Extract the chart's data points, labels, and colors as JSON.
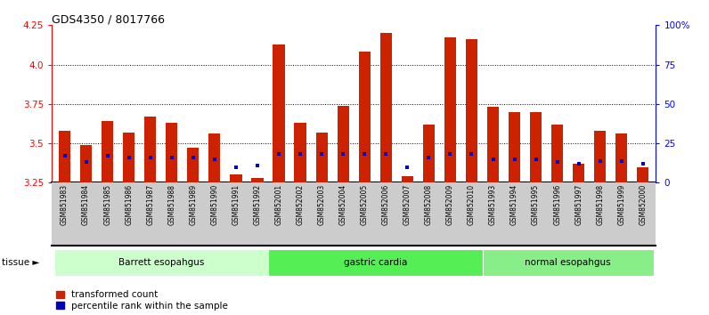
{
  "title": "GDS4350 / 8017766",
  "samples": [
    "GSM851983",
    "GSM851984",
    "GSM851985",
    "GSM851986",
    "GSM851987",
    "GSM851988",
    "GSM851989",
    "GSM851990",
    "GSM851991",
    "GSM851992",
    "GSM852001",
    "GSM852002",
    "GSM852003",
    "GSM852004",
    "GSM852005",
    "GSM852006",
    "GSM852007",
    "GSM852008",
    "GSM852009",
    "GSM852010",
    "GSM851993",
    "GSM851994",
    "GSM851995",
    "GSM851996",
    "GSM851997",
    "GSM851998",
    "GSM851999",
    "GSM852000"
  ],
  "red_values": [
    3.58,
    3.49,
    3.64,
    3.57,
    3.67,
    3.63,
    3.47,
    3.56,
    3.3,
    3.28,
    4.13,
    3.63,
    3.57,
    3.74,
    4.08,
    4.2,
    3.29,
    3.62,
    4.17,
    4.16,
    3.73,
    3.7,
    3.7,
    3.62,
    3.37,
    3.58,
    3.56,
    3.35
  ],
  "blue_values": [
    3.42,
    3.38,
    3.42,
    3.41,
    3.41,
    3.41,
    3.41,
    3.4,
    3.35,
    3.36,
    3.43,
    3.43,
    3.43,
    3.43,
    3.43,
    3.43,
    3.35,
    3.41,
    3.43,
    3.43,
    3.4,
    3.4,
    3.4,
    3.38,
    3.37,
    3.39,
    3.39,
    3.37
  ],
  "groups": [
    {
      "label": "Barrett esopahgus",
      "start": 0,
      "end": 10,
      "color": "#ccffcc"
    },
    {
      "label": "gastric cardia",
      "start": 10,
      "end": 20,
      "color": "#55ee55"
    },
    {
      "label": "normal esopahgus",
      "start": 20,
      "end": 28,
      "color": "#88ee88"
    }
  ],
  "ylim_left": [
    3.25,
    4.25
  ],
  "ylim_right": [
    0,
    100
  ],
  "yticks_left": [
    3.25,
    3.5,
    3.75,
    4.0,
    4.25
  ],
  "yticks_right": [
    0,
    25,
    50,
    75,
    100
  ],
  "ytick_labels_right": [
    "0",
    "25",
    "50",
    "75",
    "100%"
  ],
  "bar_color": "#cc2200",
  "dot_color": "#0000bb",
  "bg_color": "#ffffff",
  "xlabel_bg": "#cccccc",
  "bar_width": 0.55,
  "legend_items": [
    "transformed count",
    "percentile rank within the sample"
  ]
}
